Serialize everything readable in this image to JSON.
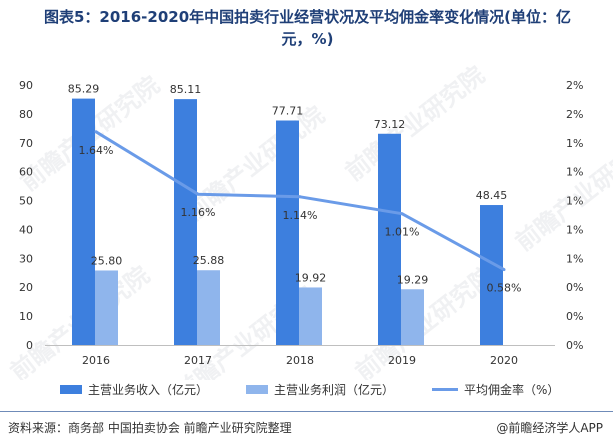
{
  "title_line1": "图表5：2016-2020年中国拍卖行业经营状况及平均佣金率变化情况(单位：亿",
  "title_line2": "元，%)",
  "chart_data": {
    "type": "bar",
    "categories": [
      "2016",
      "2017",
      "2018",
      "2019",
      "2020"
    ],
    "series": [
      {
        "name": "主营业务收入（亿元）",
        "kind": "bar",
        "axis": "left",
        "color": "#3d7fde",
        "values": [
          85.29,
          85.11,
          77.71,
          73.12,
          48.45
        ],
        "labels": [
          "85.29",
          "85.11",
          "77.71",
          "73.12",
          "48.45"
        ]
      },
      {
        "name": "主营业务利润（亿元）",
        "kind": "bar",
        "axis": "left",
        "color": "#8fb5ec",
        "values": [
          25.8,
          25.88,
          19.92,
          19.29,
          null
        ],
        "labels": [
          "25.80",
          "25.88",
          "19.92",
          "19.29",
          ""
        ]
      },
      {
        "name": "平均佣金率（%）",
        "kind": "line",
        "axis": "right",
        "color": "#6a9be8",
        "values": [
          1.64,
          1.16,
          1.14,
          1.01,
          0.58
        ],
        "labels": [
          "1.64%",
          "1.16%",
          "1.14%",
          "1.01%",
          "0.58%"
        ]
      }
    ],
    "y_left": {
      "min": 0,
      "max": 90,
      "ticks": [
        "0",
        "10",
        "20",
        "30",
        "40",
        "50",
        "60",
        "70",
        "80",
        "90"
      ]
    },
    "y_right": {
      "min": 0,
      "max": 2.0,
      "ticks": [
        "0%",
        "0%",
        "0%",
        "1%",
        "1%",
        "1%",
        "1%",
        "1%",
        "2%",
        "2%"
      ]
    },
    "grid": false,
    "legend_position": "bottom"
  },
  "watermark_text": "前瞻产业研究院",
  "source_text": "资料来源：商务部 中国拍卖协会 前瞻产业研究院整理",
  "brand_text": "@前瞻经济学人APP"
}
